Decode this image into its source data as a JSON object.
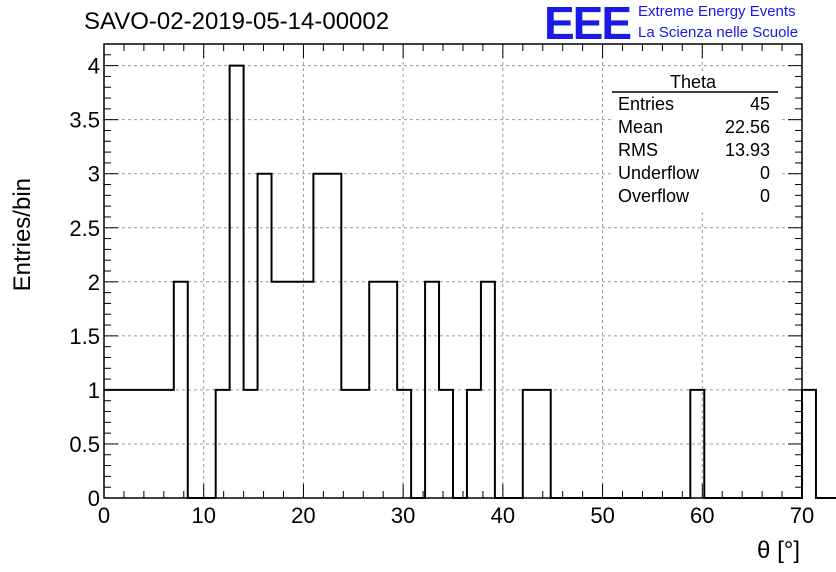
{
  "header": {
    "title": "SAVO-02-2019-05-14-00002",
    "logo_mark": "EEE",
    "logo_line1": "Extreme Energy Events",
    "logo_line2": "La Scienza nelle Scuole",
    "logo_color": "#1a1ae6"
  },
  "stats": {
    "name": "Theta",
    "rows": [
      {
        "label": "Entries",
        "value": "45"
      },
      {
        "label": "Mean",
        "value": "22.56"
      },
      {
        "label": "RMS",
        "value": "13.93"
      },
      {
        "label": "Underflow",
        "value": "0"
      },
      {
        "label": "Overflow",
        "value": "0"
      }
    ]
  },
  "chart_data": {
    "type": "bar",
    "title": "SAVO-02-2019-05-14-00002",
    "xlabel": "θ [°]",
    "ylabel": "Entries/bin",
    "xlim": [
      0,
      70
    ],
    "ylim": [
      0,
      4.2
    ],
    "grid": true,
    "bin_width": 1.4,
    "bin_start": 0,
    "values": [
      1,
      1,
      1,
      1,
      1,
      2,
      0,
      0,
      1,
      4,
      1,
      3,
      2,
      2,
      2,
      3,
      3,
      1,
      1,
      2,
      2,
      1,
      0,
      2,
      1,
      0,
      1,
      2,
      0,
      0,
      1,
      1,
      0,
      0,
      0,
      0,
      0,
      0,
      0,
      0,
      0,
      0,
      1,
      0,
      0,
      0,
      0,
      0,
      0,
      0,
      1,
      0,
      0,
      0,
      0,
      0,
      0,
      0,
      0,
      0,
      0,
      0,
      0,
      0,
      0,
      0,
      0,
      0,
      0,
      0
    ],
    "xticks": [
      0,
      10,
      20,
      30,
      40,
      50,
      60,
      70
    ],
    "xtick_labels": [
      "0",
      "10",
      "20",
      "30",
      "40",
      "50",
      "60",
      "70"
    ],
    "yticks": [
      0,
      0.5,
      1,
      1.5,
      2,
      2.5,
      3,
      3.5,
      4
    ],
    "ytick_labels": [
      "0",
      "0.5",
      "1",
      "1.5",
      "2",
      "2.5",
      "3",
      "3.5",
      "4"
    ]
  }
}
